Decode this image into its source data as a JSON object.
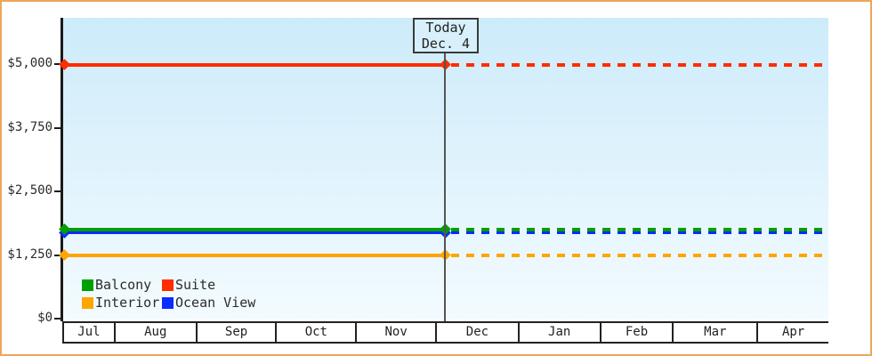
{
  "chart_data": {
    "type": "line",
    "description": "Cabin price history by month; solid lines are past prices, dotted lines are projected/flat after today",
    "today_annotation": {
      "line1": "Today",
      "line2": "Dec. 4"
    },
    "x_axis": {
      "tick_labels": [
        "Jul",
        "Aug",
        "Sep",
        "Oct",
        "Nov",
        "Dec",
        "Jan",
        "Feb",
        "Mar",
        "Apr"
      ]
    },
    "y_axis": {
      "range": [
        0,
        5000
      ],
      "ticks": [
        {
          "label": "$5,000",
          "value": 5000
        },
        {
          "label": "$3,750",
          "value": 3750
        },
        {
          "label": "$2,500",
          "value": 2500
        },
        {
          "label": "$1,250",
          "value": 1250
        },
        {
          "label": "$0",
          "value": 0
        }
      ]
    },
    "series": [
      {
        "name": "Suite",
        "color": "#ff2d00",
        "value": 4985
      },
      {
        "name": "Interior",
        "color": "#ffa500",
        "value": 1250
      },
      {
        "name": "Ocean View",
        "color": "#0c2bff",
        "value": 1695
      },
      {
        "name": "Balcony",
        "color": "#00a000",
        "value": 1760
      }
    ],
    "legend": {
      "entries": [
        "Balcony",
        "Suite",
        "Interior",
        "Ocean View"
      ],
      "position": "bottom-left inside plot"
    },
    "style": {
      "plot_bg_top": "#cdebfa",
      "plot_bg_bottom": "#f3fbff",
      "frame_border": "#eaa758",
      "axis_color": "#1a1a1a",
      "grid": "off"
    }
  }
}
